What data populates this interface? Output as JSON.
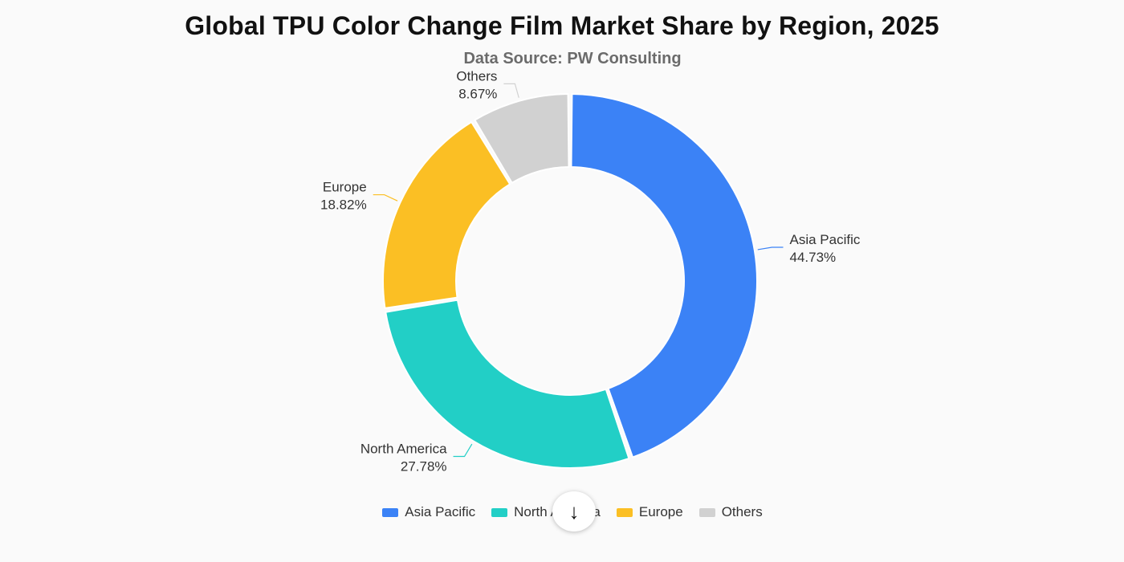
{
  "title": "Global TPU Color Change Film Market Share by Region, 2025",
  "subtitle": "Data Source: PW Consulting",
  "scroll_button_icon": "arrow-down-icon",
  "colors": {
    "asia_pacific": "#3b82f6",
    "north_america": "#22cfc6",
    "europe": "#fbbf24",
    "others": "#d1d1d1"
  },
  "legend": [
    {
      "label": "Asia Pacific",
      "color": "#3b82f6"
    },
    {
      "label": "North America",
      "color": "#22cfc6"
    },
    {
      "label": "Europe",
      "color": "#fbbf24"
    },
    {
      "label": "Others",
      "color": "#d1d1d1"
    }
  ],
  "chart_data": {
    "type": "pie",
    "donut": true,
    "title": "Global TPU Color Change Film Market Share by Region, 2025",
    "subtitle": "Data Source: PW Consulting",
    "legend_position": "bottom",
    "categories": [
      "Asia Pacific",
      "North America",
      "Europe",
      "Others"
    ],
    "values": [
      44.73,
      27.78,
      18.82,
      8.67
    ],
    "value_labels": [
      "44.73%",
      "27.78%",
      "18.82%",
      "8.67%"
    ],
    "colors": [
      "#3b82f6",
      "#22cfc6",
      "#fbbf24",
      "#d1d1d1"
    ]
  }
}
